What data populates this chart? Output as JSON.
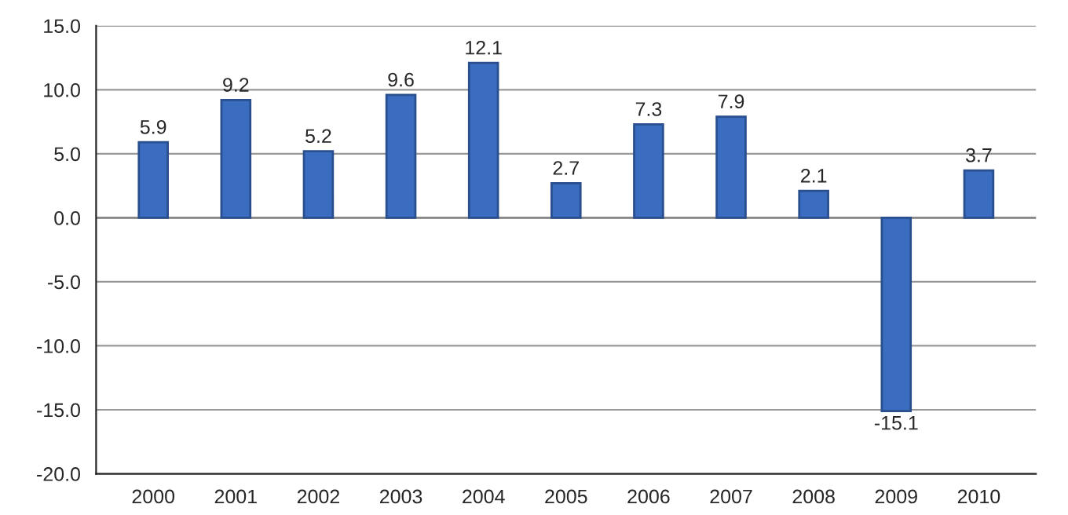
{
  "chart_data": {
    "type": "bar",
    "categories": [
      "2000",
      "2001",
      "2002",
      "2003",
      "2004",
      "2005",
      "2006",
      "2007",
      "2008",
      "2009",
      "2010"
    ],
    "values": [
      5.9,
      9.2,
      5.2,
      9.6,
      12.1,
      2.7,
      7.3,
      7.9,
      2.1,
      -15.1,
      3.7
    ],
    "color": "#3a6cbf",
    "ylim": [
      -20,
      15
    ],
    "yticks": [
      {
        "value": -20,
        "label": "-20.0"
      },
      {
        "value": -15,
        "label": "-15.0"
      },
      {
        "value": -10,
        "label": "-10.0"
      },
      {
        "value": -5,
        "label": "-5.0"
      },
      {
        "value": 0,
        "label": "0.0"
      },
      {
        "value": 5,
        "label": "5.0"
      },
      {
        "value": 10,
        "label": "10.0"
      },
      {
        "value": 15,
        "label": "15.0"
      }
    ],
    "grid": "y",
    "data_labels": true
  }
}
